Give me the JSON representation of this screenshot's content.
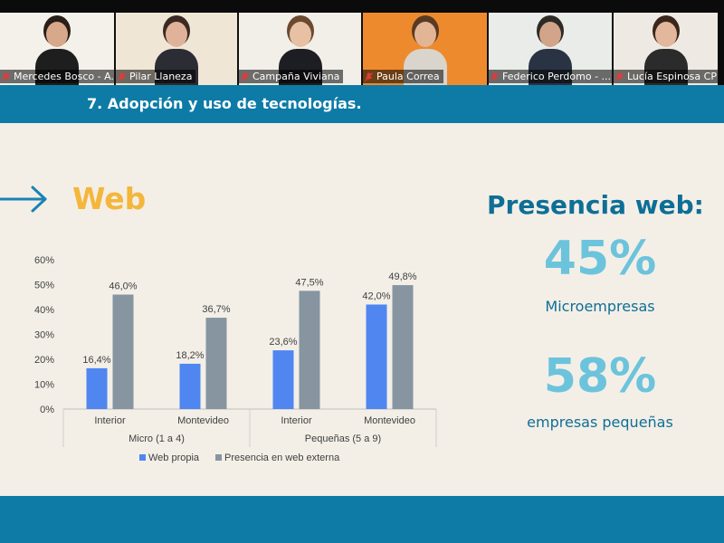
{
  "participants": [
    {
      "name": "Mercedes Bosco - A...",
      "bg": "#f4f1ea",
      "skin": "#d8a88a",
      "hair": "#2a1e18",
      "shirt": "#1e1e1e"
    },
    {
      "name": "Pilar Llaneza",
      "bg": "#efe6d6",
      "skin": "#e0b29a",
      "hair": "#3a2a22",
      "shirt": "#2c2c34"
    },
    {
      "name": "Campaña Viviana",
      "bg": "#f2efe8",
      "skin": "#e8c0a4",
      "hair": "#6b4a30",
      "shirt": "#1d1d24"
    },
    {
      "name": "Paula Correa",
      "bg": "#ee8a2e",
      "skin": "#e2b596",
      "hair": "#5a3a22",
      "shirt": "#d9d4cc"
    },
    {
      "name": "Federico Perdomo - ...",
      "bg": "#e9ece9",
      "skin": "#d2a48a",
      "hair": "#2e2a26",
      "shirt": "#2a3344"
    },
    {
      "name": "Lucía Espinosa CP Ty",
      "bg": "#eeeae3",
      "skin": "#e3b79c",
      "hair": "#3b261b",
      "shirt": "#2b2b2b"
    }
  ],
  "slide": {
    "title": "7. Adopción y uso de tecnologías.",
    "section": "Web",
    "presence_title": "Presencia web:",
    "stat1_value": "45%",
    "stat1_label": "Microempresas",
    "stat2_value": "58%",
    "stat2_label": "empresas pequeñas"
  },
  "colors": {
    "header": "#0e7ba6",
    "accent_orange": "#f4b63b",
    "accent_light_blue": "#6cc3dc",
    "series_web_propia": "#4f86f0",
    "series_externa": "#8795a1"
  },
  "chart_data": {
    "type": "bar",
    "categories": [
      "Interior",
      "Montevideo",
      "Interior",
      "Montevideo"
    ],
    "groups": [
      {
        "label": "Micro (1 a 4)",
        "categories": [
          "Interior",
          "Montevideo"
        ]
      },
      {
        "label": "Pequeñas (5 a 9)",
        "categories": [
          "Interior",
          "Montevideo"
        ]
      }
    ],
    "series": [
      {
        "name": "Web propia",
        "values": [
          16.4,
          18.2,
          23.6,
          42.0
        ],
        "labels": [
          "16,4%",
          "18,2%",
          "23,6%",
          "42,0%"
        ]
      },
      {
        "name": "Presencia en web externa",
        "values": [
          46.0,
          36.7,
          47.5,
          49.8
        ],
        "labels": [
          "46,0%",
          "36,7%",
          "47,5%",
          "49,8%"
        ]
      }
    ],
    "y_ticks": [
      "0%",
      "10%",
      "20%",
      "30%",
      "40%",
      "50%",
      "60%"
    ],
    "ylim": [
      0,
      60
    ],
    "grid": false,
    "legend_position": "bottom"
  }
}
